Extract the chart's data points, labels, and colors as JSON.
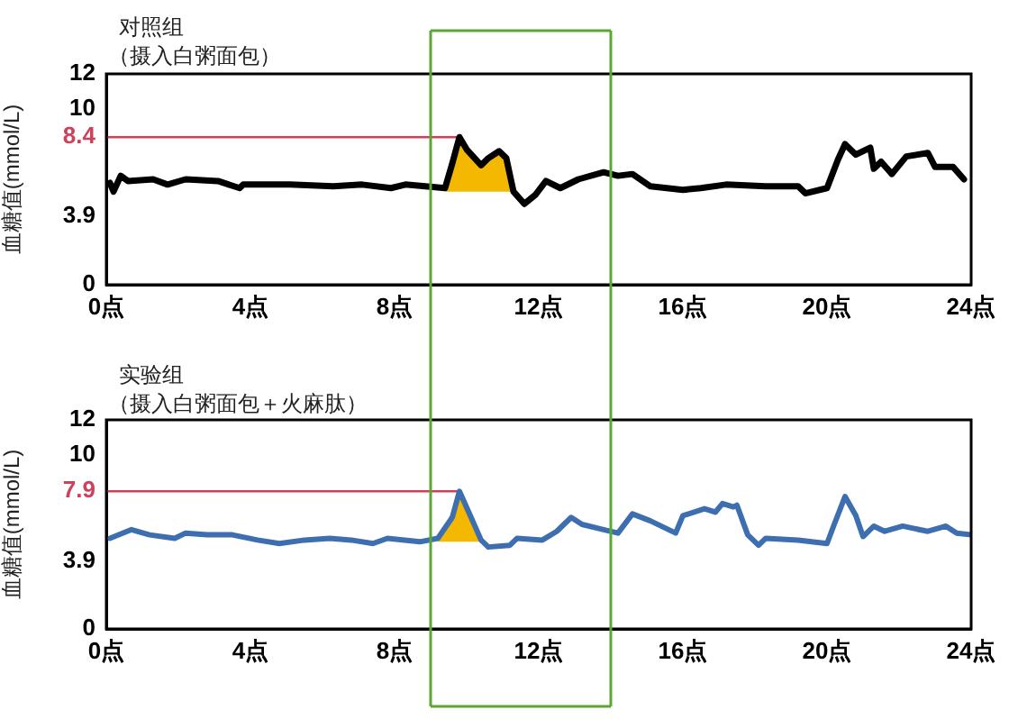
{
  "chart_data": [
    {
      "type": "line",
      "title": "对照组",
      "subtitle": "（摄入白粥面包）",
      "ylabel": "血糖值(mmol/L)",
      "xlim": [
        0,
        24
      ],
      "ylim": [
        0,
        12
      ],
      "xticks": [
        {
          "value": 0,
          "label": "0点"
        },
        {
          "value": 4,
          "label": "4点"
        },
        {
          "value": 8,
          "label": "8点"
        },
        {
          "value": 12,
          "label": "12点"
        },
        {
          "value": 16,
          "label": "16点"
        },
        {
          "value": 20,
          "label": "20点"
        },
        {
          "value": 24,
          "label": "24点"
        }
      ],
      "yticks": [
        0,
        3.9,
        8.4,
        10,
        12
      ],
      "grid": false,
      "legend": false,
      "marker": "none",
      "line_style": "solid",
      "series": [
        {
          "type": "line",
          "color": "#000000",
          "x": [
            0.1,
            0.2,
            0.4,
            0.6,
            1.3,
            1.7,
            2.2,
            3.1,
            3.7,
            3.8,
            5.1,
            6.3,
            7.1,
            7.9,
            8.3,
            9.4,
            9.6,
            9.8,
            10,
            10.4,
            10.6,
            10.9,
            11.1,
            11.3,
            11.6,
            11.9,
            12.2,
            12.6,
            13.1,
            13.8,
            14.2,
            14.6,
            15.1,
            16,
            16.5,
            17.2,
            18.3,
            19.2,
            19.4,
            20,
            20.3,
            20.5,
            20.8,
            21.2,
            21.3,
            21.5,
            21.8,
            22.2,
            22.8,
            23,
            23.5,
            23.8
          ],
          "values": [
            5.8,
            5.3,
            6.2,
            5.9,
            6,
            5.7,
            6,
            5.9,
            5.5,
            5.7,
            5.7,
            5.6,
            5.7,
            5.5,
            5.7,
            5.5,
            6.9,
            8.4,
            7.7,
            6.8,
            7.2,
            7.6,
            7.2,
            5.3,
            4.6,
            5.1,
            5.9,
            5.5,
            6,
            6.4,
            6.2,
            6.3,
            5.6,
            5.4,
            5.5,
            5.7,
            5.6,
            5.6,
            5.2,
            5.5,
            7.1,
            8,
            7.4,
            7.8,
            6.6,
            7,
            6.3,
            7.3,
            7.5,
            6.7,
            6.7,
            6
          ],
          "lower": [
            null,
            null,
            null,
            null,
            null,
            null,
            null,
            null,
            null,
            null,
            null,
            null,
            null,
            null,
            null,
            5.3,
            5.3,
            5.3,
            5.3,
            5.3,
            5.3,
            5.3,
            5.3,
            5.3,
            null,
            null,
            null,
            null,
            null,
            null,
            null,
            null,
            null,
            null,
            null,
            null,
            null,
            null,
            null,
            null,
            null,
            null,
            null,
            null,
            null,
            null,
            null,
            null,
            null,
            null,
            null,
            null
          ],
          "upper": [
            null,
            null,
            null,
            null,
            null,
            null,
            null,
            null,
            null,
            null,
            null,
            null,
            null,
            null,
            null,
            5.5,
            6.9,
            8.4,
            7.7,
            6.8,
            7.2,
            7.6,
            7.2,
            5.3,
            null,
            null,
            null,
            null,
            null,
            null,
            null,
            null,
            null,
            null,
            null,
            null,
            null,
            null,
            null,
            null,
            null,
            null,
            null,
            null,
            null,
            null,
            null,
            null,
            null,
            null,
            null,
            null
          ]
        }
      ],
      "ref_lines": [
        {
          "axis": "y",
          "value": 8.4,
          "color": "#d0405a"
        },
        {
          "axis": "x",
          "value": 9,
          "color": "#5aa832"
        },
        {
          "axis": "x",
          "value": 14,
          "color": "#5aa832"
        }
      ]
    },
    {
      "type": "line",
      "title": "实验组",
      "subtitle": "（摄入白粥面包＋火麻肽）",
      "ylabel": "血糖值(mmol/L)",
      "xlim": [
        0,
        24
      ],
      "ylim": [
        0,
        12
      ],
      "xticks": [
        {
          "value": 0,
          "label": "0点"
        },
        {
          "value": 4,
          "label": "4点"
        },
        {
          "value": 8,
          "label": "8点"
        },
        {
          "value": 12,
          "label": "12点"
        },
        {
          "value": 16,
          "label": "16点"
        },
        {
          "value": 20,
          "label": "20点"
        },
        {
          "value": 24,
          "label": "24点"
        }
      ],
      "yticks": [
        0,
        3.9,
        7.9,
        10,
        12
      ],
      "grid": false,
      "legend": false,
      "marker": "none",
      "line_style": "solid",
      "series": [
        {
          "type": "line",
          "color": "#3d6fb0",
          "x": [
            0.1,
            0.7,
            1.2,
            1.9,
            2.2,
            2.8,
            3.5,
            4.2,
            4.8,
            5.5,
            6.2,
            6.8,
            7.4,
            7.8,
            8.7,
            9.2,
            9.6,
            9.8,
            10.1,
            10.4,
            10.6,
            11.2,
            11.4,
            12.1,
            12.5,
            12.9,
            13.2,
            13.8,
            14.2,
            14.6,
            15.1,
            15.8,
            16,
            16.6,
            16.9,
            17.1,
            17.4,
            17.5,
            17.8,
            18.1,
            18.3,
            19.2,
            20,
            20.2,
            20.5,
            20.8,
            21,
            21.3,
            21.6,
            22.1,
            22.8,
            23.3,
            23.6,
            24
          ],
          "values": [
            5.2,
            5.7,
            5.4,
            5.2,
            5.5,
            5.4,
            5.4,
            5.1,
            4.9,
            5.1,
            5.2,
            5.1,
            4.9,
            5.2,
            5,
            5.2,
            6.4,
            7.9,
            6.5,
            5.1,
            4.7,
            4.8,
            5.2,
            5.1,
            5.6,
            6.4,
            6,
            5.7,
            5.5,
            6.6,
            6.2,
            5.5,
            6.5,
            6.9,
            6.7,
            7.2,
            7,
            7.1,
            5.4,
            4.8,
            5.2,
            5.1,
            4.9,
            6,
            7.6,
            6.5,
            5.3,
            5.9,
            5.6,
            5.9,
            5.6,
            5.9,
            5.5,
            5.4
          ],
          "lower": [
            null,
            null,
            null,
            null,
            null,
            null,
            null,
            null,
            null,
            null,
            null,
            null,
            null,
            null,
            null,
            5,
            5,
            5,
            5,
            5,
            null,
            null,
            null,
            null,
            null,
            null,
            null,
            null,
            null,
            null,
            null,
            null,
            null,
            null,
            null,
            null,
            null,
            null,
            null,
            null,
            null,
            null,
            null,
            null,
            null,
            null,
            null,
            null,
            null,
            null,
            null,
            null,
            null,
            null
          ],
          "upper": [
            null,
            null,
            null,
            null,
            null,
            null,
            null,
            null,
            null,
            null,
            null,
            null,
            null,
            null,
            null,
            5.2,
            6.4,
            7.9,
            6.5,
            5.1,
            null,
            null,
            null,
            null,
            null,
            null,
            null,
            null,
            null,
            null,
            null,
            null,
            null,
            null,
            null,
            null,
            null,
            null,
            null,
            null,
            null,
            null,
            null,
            null,
            null,
            null,
            null,
            null,
            null,
            null,
            null,
            null,
            null,
            null
          ]
        }
      ],
      "ref_lines": [
        {
          "axis": "y",
          "value": 7.9,
          "color": "#d0405a"
        },
        {
          "axis": "x",
          "value": 9,
          "color": "#5aa832"
        },
        {
          "axis": "x",
          "value": 14,
          "color": "#5aa832"
        }
      ]
    }
  ]
}
